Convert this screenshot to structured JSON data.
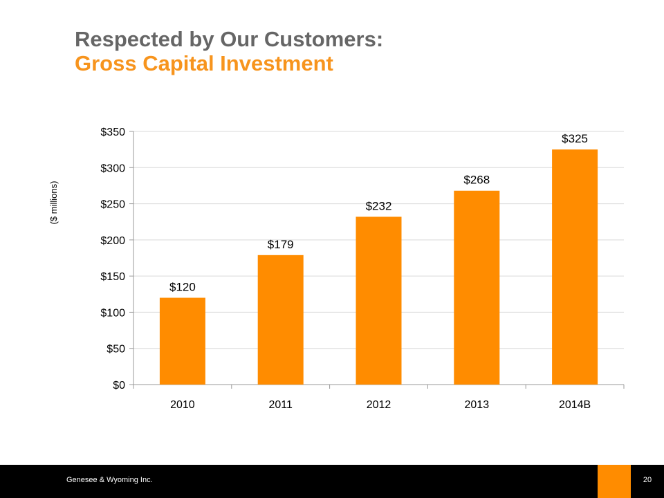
{
  "slide": {
    "title_line1": "Respected by Our Customers:",
    "title_line2": "Gross Capital Investment",
    "title_color": "#666666",
    "accent_color": "#f7941d"
  },
  "footer": {
    "company": "Genesee & Wyoming Inc.",
    "page_number": "20",
    "background": "#000000",
    "accent": "#ff8c00"
  },
  "chart_data": {
    "type": "bar",
    "categories": [
      "2010",
      "2011",
      "2012",
      "2013",
      "2014B"
    ],
    "values": [
      120,
      179,
      232,
      268,
      325
    ],
    "value_labels": [
      "$120",
      "$179",
      "$232",
      "$268",
      "$325"
    ],
    "ylabel": "($ millions)",
    "ylim": [
      0,
      350
    ],
    "yticks": [
      0,
      50,
      100,
      150,
      200,
      250,
      300,
      350
    ],
    "ytick_labels": [
      "$0",
      "$50",
      "$100",
      "$150",
      "$200",
      "$250",
      "$300",
      "$350"
    ],
    "grid": true,
    "legend": "none",
    "bar_color": "#ff8c00"
  }
}
